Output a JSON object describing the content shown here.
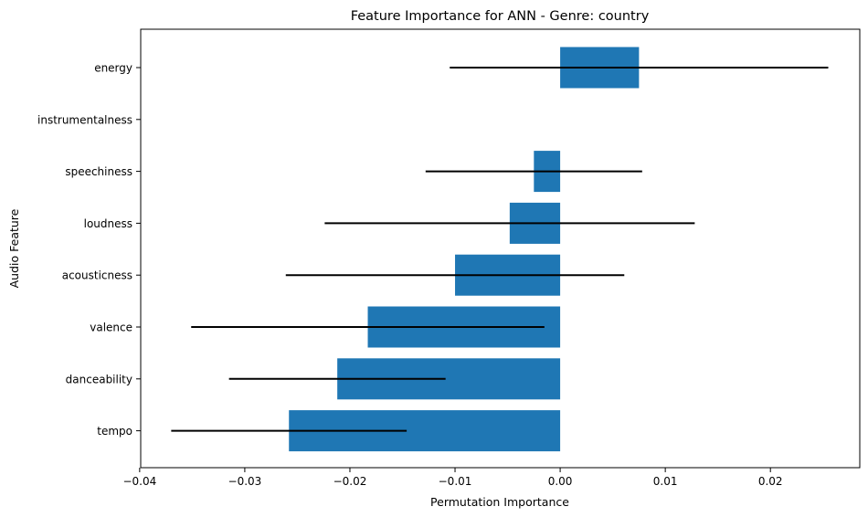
{
  "chart_data": {
    "type": "bar",
    "orientation": "horizontal",
    "title": "Feature Importance for ANN - Genre: country",
    "xlabel": "Permutation Importance",
    "ylabel": "Audio Feature",
    "categories": [
      "energy",
      "instrumentalness",
      "speechiness",
      "loudness",
      "acousticness",
      "valence",
      "danceability",
      "tempo"
    ],
    "values": [
      0.0075,
      0.0,
      -0.0025,
      -0.0048,
      -0.01,
      -0.0183,
      -0.0212,
      -0.0258
    ],
    "errors": [
      0.018,
      0.0,
      0.0103,
      0.0176,
      0.0161,
      0.0168,
      0.0103,
      0.0112
    ],
    "xlim": [
      -0.0399,
      0.0285
    ],
    "xticks": [
      -0.04,
      -0.03,
      -0.02,
      -0.01,
      0.0,
      0.01,
      0.02
    ],
    "xtick_labels": [
      "−0.04",
      "−0.03",
      "−0.02",
      "−0.01",
      "0.00",
      "0.01",
      "0.02"
    ],
    "grid": false,
    "colors": {
      "bar": "#1f77b4",
      "error": "#000000"
    }
  }
}
